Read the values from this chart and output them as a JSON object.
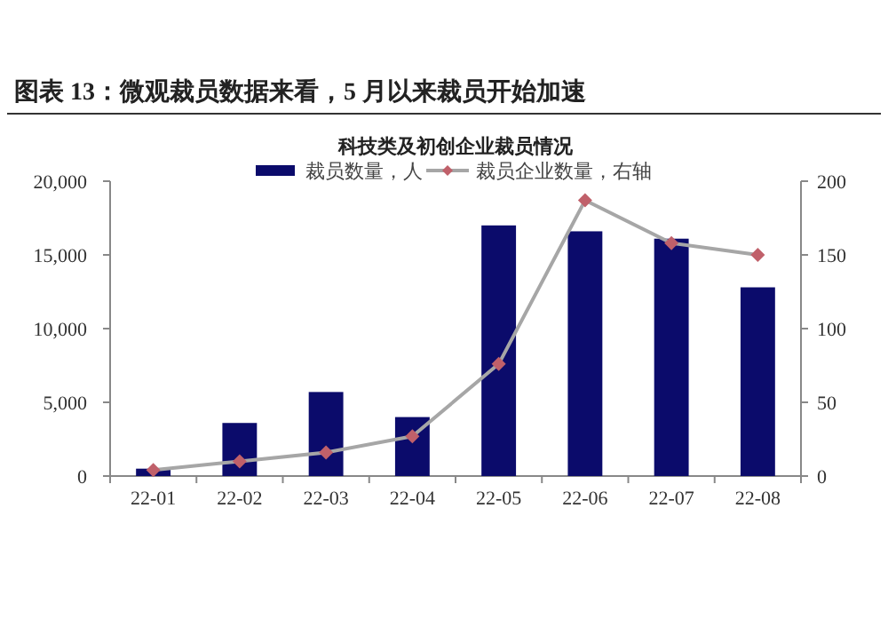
{
  "chart_data": {
    "type": "bar",
    "title": "图表 13：微观裁员数据来看，5 月以来裁员开始加速",
    "subtitle": "科技类及初创企业裁员情况",
    "categories": [
      "22-01",
      "22-02",
      "22-03",
      "22-04",
      "22-05",
      "22-06",
      "22-07",
      "22-08"
    ],
    "series": [
      {
        "name": "裁员数量，人",
        "color": "#0b0b6b",
        "values": [
          500,
          3600,
          5700,
          4000,
          17000,
          16600,
          16100,
          12800
        ]
      },
      {
        "name": "裁员企业数量，右轴",
        "type": "line",
        "axis": "y2",
        "color": "#a6a6a6",
        "marker": "diamond",
        "colors": [
          "#c0606a",
          "#c0606a",
          "#c0606a",
          "#c0606a",
          "#c0606a",
          "#c0606a",
          "#c0606a",
          "#c0606a"
        ],
        "values": [
          4,
          10,
          16,
          27,
          76,
          187,
          158,
          150
        ]
      }
    ],
    "ylim": [
      0,
      20000
    ],
    "yticks": [
      0,
      {
        "value": 5000,
        "label": "5,000"
      },
      {
        "value": 10000,
        "label": "10,000"
      },
      {
        "value": 15000,
        "label": "15,000"
      },
      {
        "value": 20000,
        "label": "20,000"
      }
    ],
    "y2lim": [
      0,
      200
    ],
    "y2ticks": [
      0,
      50,
      100,
      150,
      200
    ],
    "grid": false,
    "legend": "top"
  }
}
